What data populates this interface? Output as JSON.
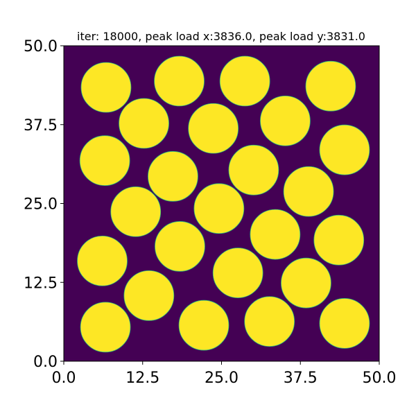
{
  "chart_data": {
    "type": "heatmap",
    "title": "iter: 18000, peak load x:3836.0, peak load y:3831.0",
    "xlabel": "",
    "ylabel": "",
    "xlim": [
      0.0,
      50.0
    ],
    "ylim": [
      0.0,
      50.0
    ],
    "x_ticks": [
      0.0,
      12.5,
      25.0,
      37.5,
      50.0
    ],
    "y_ticks": [
      0.0,
      12.5,
      25.0,
      37.5,
      50.0
    ],
    "x_tick_labels": [
      "0.0",
      "12.5",
      "25.0",
      "37.5",
      "50.0"
    ],
    "y_tick_labels": [
      "0.0",
      "12.5",
      "25.0",
      "37.5",
      "50.0"
    ],
    "grid": false,
    "colormap": "viridis",
    "background_value": 0,
    "particle_value": 1,
    "colors": {
      "background": "#440154",
      "particle": "#fde725",
      "edge": "#2ec27a"
    },
    "particle_radius": 3.95,
    "particles": [
      {
        "x": 6.7,
        "y": 43.4
      },
      {
        "x": 18.3,
        "y": 44.4
      },
      {
        "x": 28.7,
        "y": 44.4
      },
      {
        "x": 42.3,
        "y": 43.6
      },
      {
        "x": 12.7,
        "y": 37.7
      },
      {
        "x": 23.7,
        "y": 36.9
      },
      {
        "x": 35.1,
        "y": 38.1
      },
      {
        "x": 44.5,
        "y": 33.5
      },
      {
        "x": 6.5,
        "y": 31.8
      },
      {
        "x": 17.3,
        "y": 29.3
      },
      {
        "x": 30.1,
        "y": 30.3
      },
      {
        "x": 38.8,
        "y": 26.9
      },
      {
        "x": 11.4,
        "y": 23.7
      },
      {
        "x": 24.6,
        "y": 24.2
      },
      {
        "x": 33.5,
        "y": 20.1
      },
      {
        "x": 43.6,
        "y": 19.2
      },
      {
        "x": 18.4,
        "y": 18.2
      },
      {
        "x": 6.1,
        "y": 15.9
      },
      {
        "x": 27.6,
        "y": 14.0
      },
      {
        "x": 38.4,
        "y": 12.4
      },
      {
        "x": 13.5,
        "y": 10.4
      },
      {
        "x": 6.6,
        "y": 5.4
      },
      {
        "x": 22.2,
        "y": 5.7
      },
      {
        "x": 32.6,
        "y": 6.3
      },
      {
        "x": 44.5,
        "y": 6.0
      }
    ]
  }
}
